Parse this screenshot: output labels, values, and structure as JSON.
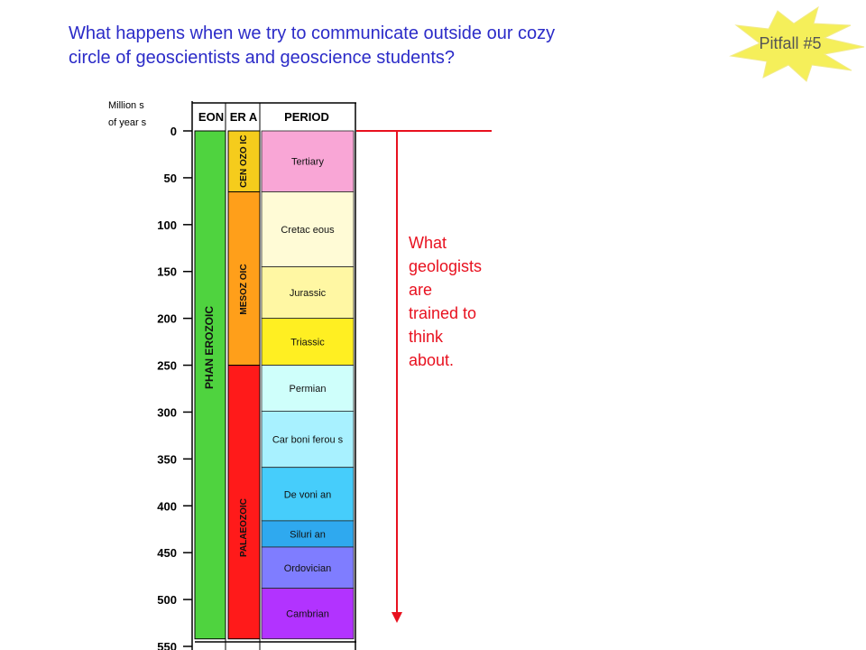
{
  "header": {
    "line1": "What happens when we try to communicate outside our cozy",
    "line2": "circle of geoscientists and geoscience students?"
  },
  "badge": {
    "label": "Pitfall #5",
    "color": "#f5ef5a"
  },
  "chart_data": {
    "type": "timeline",
    "axis_title_line1": "Million s",
    "axis_title_line2": "of year s",
    "ticks": [
      0,
      50,
      100,
      150,
      200,
      250,
      300,
      350,
      400,
      450,
      500,
      550
    ],
    "ylim": [
      0,
      550
    ],
    "headers": {
      "eon": "EON",
      "era": "ER A",
      "period": "PERIOD"
    },
    "eons": [
      {
        "name": "PHAN EROZOIC",
        "start": 0,
        "end": 542,
        "color": "#4fd33f"
      }
    ],
    "eras": [
      {
        "name": "CEN OZO IC",
        "start": 0,
        "end": 65,
        "color": "#f5cc1c"
      },
      {
        "name": "MESOZ OIC",
        "start": 65,
        "end": 250,
        "color": "#ff9f1a"
      },
      {
        "name": "PALAEOZOIC",
        "start": 250,
        "end": 542,
        "color": "#ff1a1a"
      }
    ],
    "periods": [
      {
        "name": "Tertiary",
        "start": 0,
        "end": 65,
        "color": "#f9a6d6"
      },
      {
        "name": "Cretac eous",
        "start": 65,
        "end": 145,
        "color": "#fffbd6"
      },
      {
        "name": "Jurassic",
        "start": 145,
        "end": 200,
        "color": "#fff7a3"
      },
      {
        "name": "Triassic",
        "start": 200,
        "end": 250,
        "color": "#ffef22"
      },
      {
        "name": "Permian",
        "start": 250,
        "end": 299,
        "color": "#cffffb"
      },
      {
        "name": "Car boni ferou s",
        "start": 299,
        "end": 359,
        "color": "#a8f1ff"
      },
      {
        "name": "De voni an",
        "start": 359,
        "end": 416,
        "color": "#46cdfb"
      },
      {
        "name": "Siluri an",
        "start": 416,
        "end": 444,
        "color": "#2fa9ef"
      },
      {
        "name": "Ordovician",
        "start": 444,
        "end": 488,
        "color": "#7f7dff"
      },
      {
        "name": "Cambrian",
        "start": 488,
        "end": 542,
        "color": "#b233ff"
      }
    ]
  },
  "annotation": {
    "lines": [
      "What",
      "geologists",
      "are",
      "trained to",
      "think",
      "about."
    ],
    "color": "#e8111f"
  }
}
